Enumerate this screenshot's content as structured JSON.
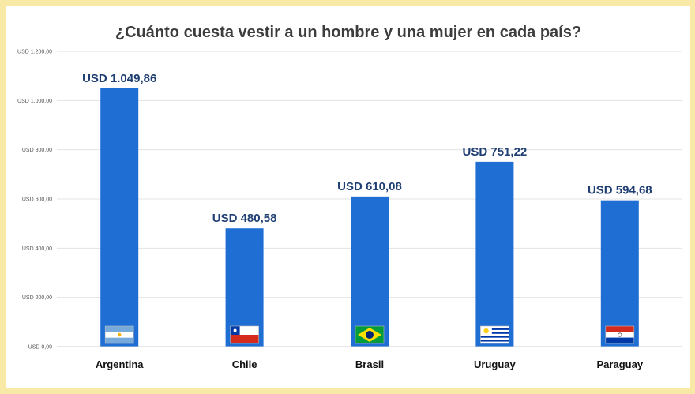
{
  "chart_data": {
    "type": "bar",
    "title": "¿Cuánto cuesta vestir a un hombre y una mujer en cada país?",
    "categories": [
      "Argentina",
      "Chile",
      "Brasil",
      "Uruguay",
      "Paraguay"
    ],
    "values": [
      1049.86,
      480.58,
      610.08,
      751.22,
      594.68
    ],
    "data_labels": [
      "USD 1.049,86",
      "USD 480,58",
      "USD 610,08",
      "USD 751,22",
      "USD 594,68"
    ],
    "flag_icons": [
      "argentina-flag-icon",
      "chile-flag-icon",
      "brazil-flag-icon",
      "uruguay-flag-icon",
      "paraguay-flag-icon"
    ],
    "ylim": [
      0,
      1200
    ],
    "y_ticks": [
      0,
      200,
      400,
      600,
      800,
      1000,
      1200
    ],
    "y_tick_labels": [
      "USD 0,00",
      "USD 200,00",
      "USD 400,00",
      "USD 600,00",
      "USD 800,00",
      "USD 1.000,00",
      "USD 1.200,00"
    ],
    "xlabel": "",
    "ylabel": "",
    "grid": true,
    "legend": "none",
    "colors": {
      "bar": "#1f6ed4",
      "data_label": "#1f3f73",
      "grid": "#e3e3e3",
      "background": "#f8e9a6"
    }
  }
}
